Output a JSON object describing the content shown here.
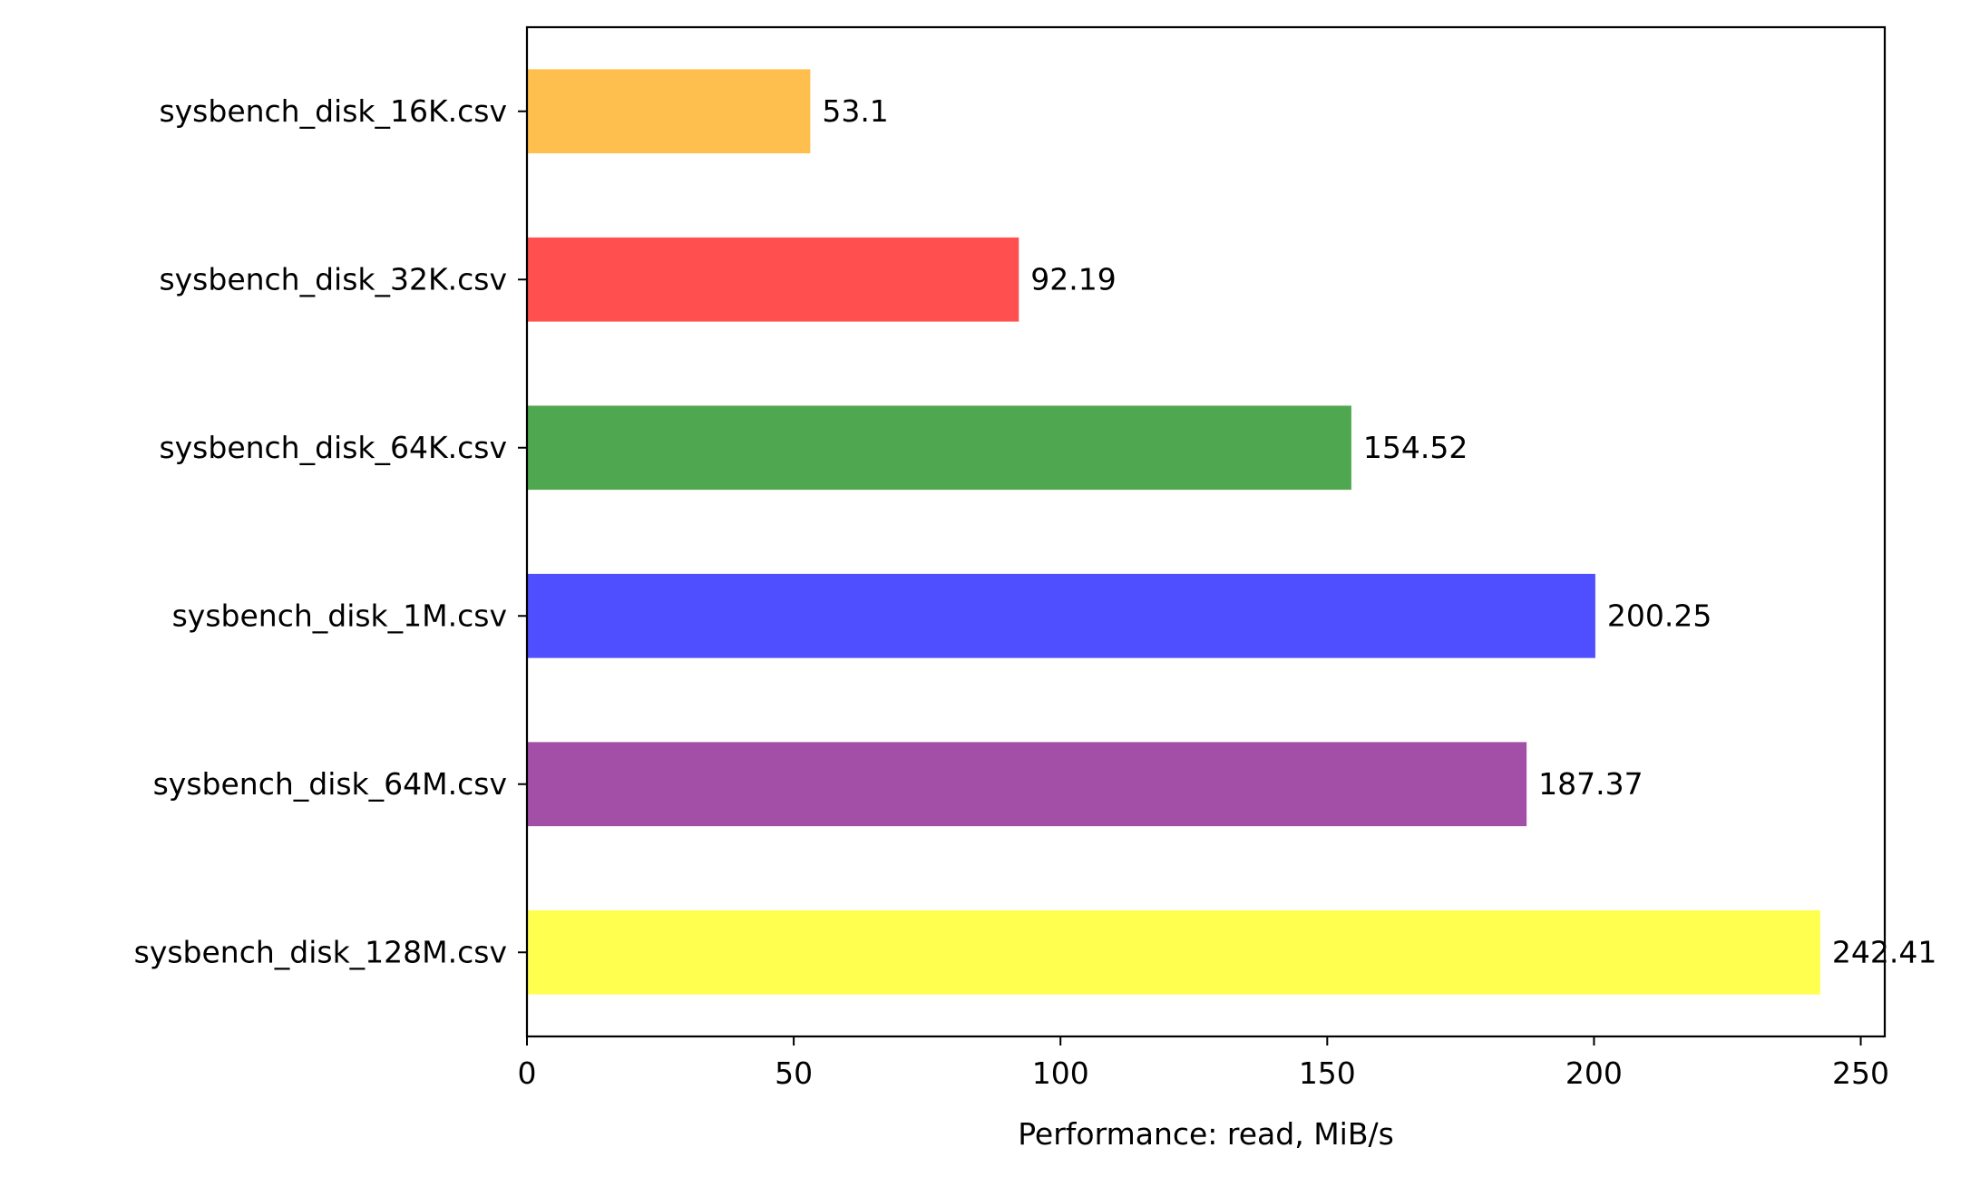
{
  "chart_data": {
    "type": "bar",
    "orientation": "horizontal",
    "title": "",
    "xlabel": "Performance: read, MiB/s",
    "ylabel": "",
    "xlim": [
      0,
      254.5
    ],
    "x_ticks": [
      0,
      50,
      100,
      150,
      200,
      250
    ],
    "grid": false,
    "legend": "none",
    "categories": [
      "sysbench_disk_16K.csv",
      "sysbench_disk_32K.csv",
      "sysbench_disk_64K.csv",
      "sysbench_disk_1M.csv",
      "sysbench_disk_64M.csv",
      "sysbench_disk_128M.csv"
    ],
    "values": [
      53.1,
      92.19,
      154.52,
      200.25,
      187.37,
      242.41
    ],
    "value_labels": [
      "53.1",
      "92.19",
      "154.52",
      "200.25",
      "187.37",
      "242.41"
    ],
    "colors": [
      "#ffbf4f",
      "#ff4f4f",
      "#4fa84f",
      "#4f4fff",
      "#a34fa8",
      "#ffff4f"
    ]
  }
}
